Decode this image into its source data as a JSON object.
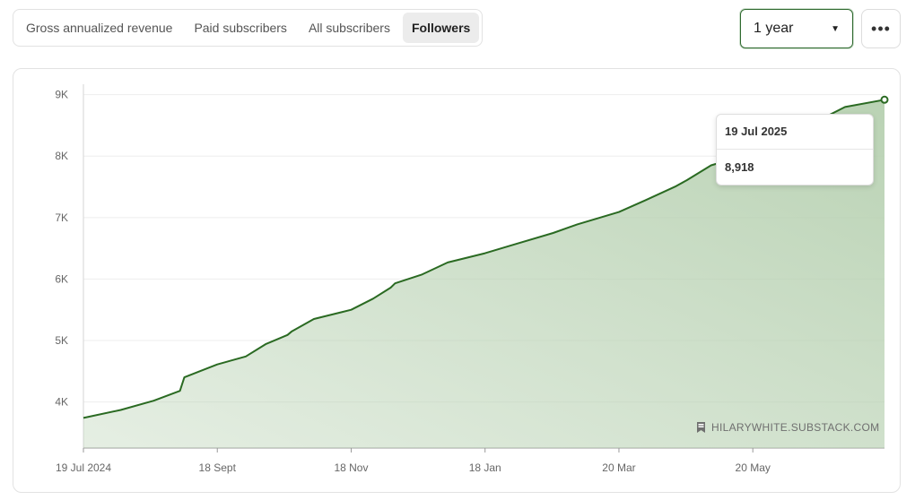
{
  "tabs": [
    {
      "label": "Gross annualized revenue",
      "active": false
    },
    {
      "label": "Paid subscribers",
      "active": false
    },
    {
      "label": "All subscribers",
      "active": false
    },
    {
      "label": "Followers",
      "active": true
    }
  ],
  "range_select": {
    "value": "1 year"
  },
  "tooltip": {
    "date": "19 Jul 2025",
    "value": "8,918"
  },
  "watermark": "HILARYWHITE.SUBSTACK.COM",
  "colors": {
    "line": "#2a6a22",
    "fill": "#b6d0b0",
    "grid": "#eeeeee",
    "active_border": "#2f6a2f"
  },
  "chart_data": {
    "type": "area",
    "title": "",
    "xlabel": "",
    "ylabel": "",
    "x_ticks": [
      "19 Jul 2024",
      "18 Sept",
      "18 Nov",
      "18 Jan",
      "20 Mar",
      "20 May"
    ],
    "y_ticks": [
      "4K",
      "5K",
      "6K",
      "7K",
      "8K",
      "9K"
    ],
    "ylim": [
      3250,
      9170
    ],
    "xlim": [
      "2024-07-19",
      "2025-07-19"
    ],
    "grid": true,
    "series": [
      {
        "x": [
          "2024-07-19",
          "2024-08-05",
          "2024-08-20",
          "2024-09-01",
          "2024-09-03",
          "2024-09-10",
          "2024-09-18",
          "2024-10-01",
          "2024-10-10",
          "2024-10-20",
          "2024-10-22",
          "2024-11-01",
          "2024-11-18",
          "2024-11-28",
          "2024-12-06",
          "2024-12-08",
          "2024-12-20",
          "2025-01-01",
          "2025-01-18",
          "2025-02-01",
          "2025-02-18",
          "2025-03-01",
          "2025-03-20",
          "2025-04-01",
          "2025-04-15",
          "2025-04-20",
          "2025-05-01",
          "2025-05-20",
          "2025-06-01",
          "2025-06-20",
          "2025-07-01",
          "2025-07-19"
        ],
        "y": [
          3740,
          3870,
          4020,
          4180,
          4400,
          4500,
          4610,
          4740,
          4940,
          5090,
          5150,
          5350,
          5500,
          5680,
          5860,
          5930,
          6070,
          6270,
          6420,
          6570,
          6750,
          6890,
          7090,
          7280,
          7510,
          7610,
          7850,
          8050,
          8280,
          8600,
          8800,
          8918
        ]
      }
    ]
  }
}
